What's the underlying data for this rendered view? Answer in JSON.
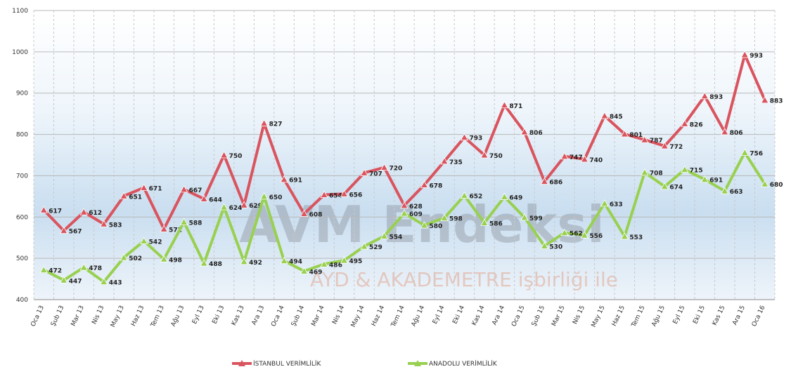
{
  "chart_data": {
    "type": "line",
    "watermark": "AVM Endeksi",
    "watermark_subtitle": "AYD & AKADEMETRE işbirliği ile",
    "categories": [
      "Oca 13",
      "Şub 13",
      "Mar 13",
      "Nis 13",
      "May 13",
      "Haz 13",
      "Tem 13",
      "Ağu 13",
      "Eyl 13",
      "Eki 13",
      "Kas 13",
      "Ara 13",
      "Oca 14",
      "Şub 14",
      "Mar 14",
      "Nis 14",
      "May 14",
      "Haz 14",
      "Tem 14",
      "Ağu 14",
      "Eyl 14",
      "Eki 14",
      "Kas 14",
      "Ara 14",
      "Oca 15",
      "Şub 15",
      "Mar 15",
      "Nis 15",
      "May 15",
      "Haz 15",
      "Tem 15",
      "Ağu 15",
      "Eyl 15",
      "Eki 15",
      "Kas 15",
      "Ara 15",
      "Oca 16"
    ],
    "series": [
      {
        "name": "İSTANBUL VERİMLİLİK",
        "color": "#d9545e",
        "values": [
          617,
          567,
          612,
          583,
          651,
          671,
          571,
          667,
          644,
          750,
          629,
          827,
          691,
          608,
          654,
          656,
          707,
          720,
          628,
          678,
          735,
          793,
          750,
          871,
          806,
          686,
          747,
          740,
          845,
          801,
          787,
          772,
          826,
          893,
          806,
          993,
          883
        ]
      },
      {
        "name": "ANADOLU VERİMLİLİK",
        "color": "#98d050",
        "values": [
          472,
          447,
          478,
          443,
          502,
          542,
          498,
          588,
          488,
          624,
          492,
          650,
          494,
          469,
          486,
          495,
          529,
          554,
          609,
          580,
          598,
          652,
          586,
          649,
          599,
          530,
          562,
          556,
          633,
          553,
          708,
          674,
          715,
          691,
          663,
          756,
          680
        ]
      }
    ],
    "ylim": [
      400,
      1100
    ],
    "yticks": [
      400,
      500,
      600,
      700,
      800,
      900,
      1000,
      1100
    ],
    "grid": true,
    "legend": "bottom"
  }
}
